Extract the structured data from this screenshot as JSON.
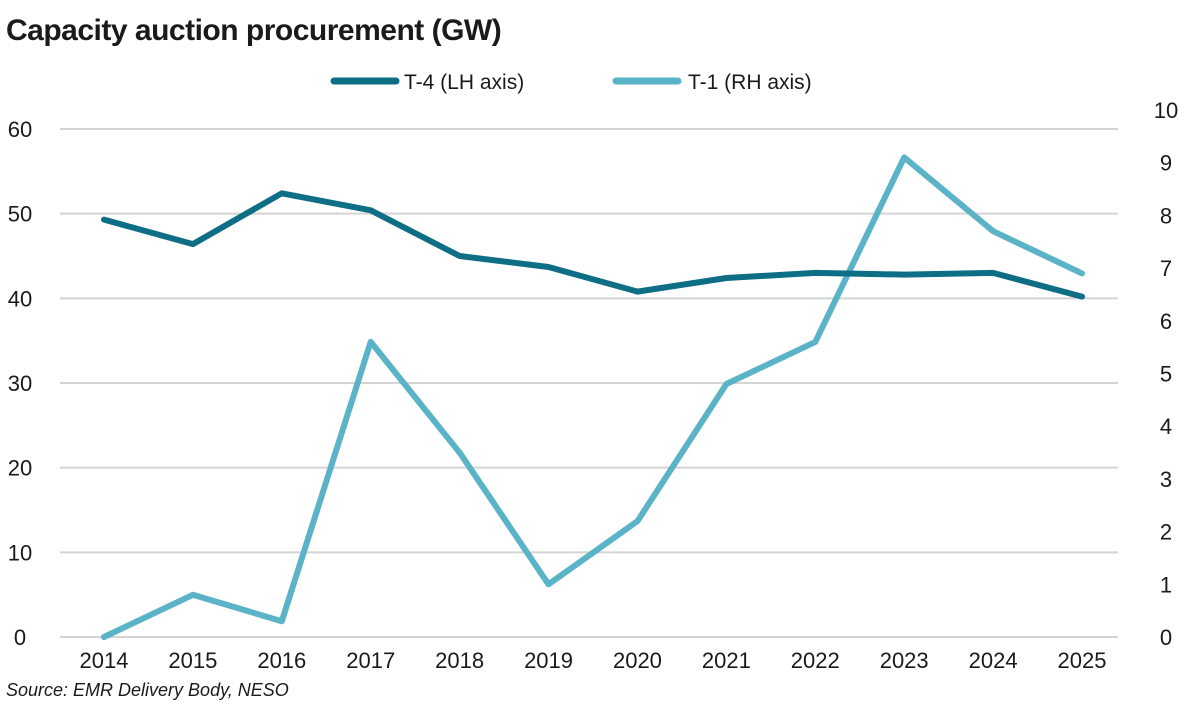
{
  "chart_data": {
    "type": "line",
    "title": "Capacity auction procurement (GW)",
    "source": "Source: EMR Delivery Body, NESO",
    "categories": [
      "2014",
      "2015",
      "2016",
      "2017",
      "2018",
      "2019",
      "2020",
      "2021",
      "2022",
      "2023",
      "2024",
      "2025"
    ],
    "left_axis": {
      "ylim": [
        0,
        60
      ],
      "ticks": [
        "0",
        "10",
        "20",
        "30",
        "40",
        "50",
        "60"
      ]
    },
    "right_axis": {
      "ylim": [
        0,
        10
      ],
      "ticks": [
        "0",
        "1",
        "2",
        "3",
        "4",
        "5",
        "6",
        "7",
        "8",
        "9",
        "10"
      ]
    },
    "grid": true,
    "legend_position": "top-center",
    "series": [
      {
        "name": "T-4 (LH axis)",
        "axis": "left",
        "color": "#0e6e85",
        "values": [
          49.3,
          46.4,
          52.4,
          50.4,
          45.0,
          43.7,
          40.8,
          42.4,
          43.0,
          42.8,
          43.0,
          40.2
        ]
      },
      {
        "name": "T-1 (RH axis)",
        "axis": "right",
        "color": "#5ab3c6",
        "values": [
          0.0,
          0.8,
          0.3,
          5.6,
          3.5,
          1.0,
          2.2,
          4.8,
          5.6,
          9.1,
          7.7,
          6.9
        ]
      }
    ]
  }
}
